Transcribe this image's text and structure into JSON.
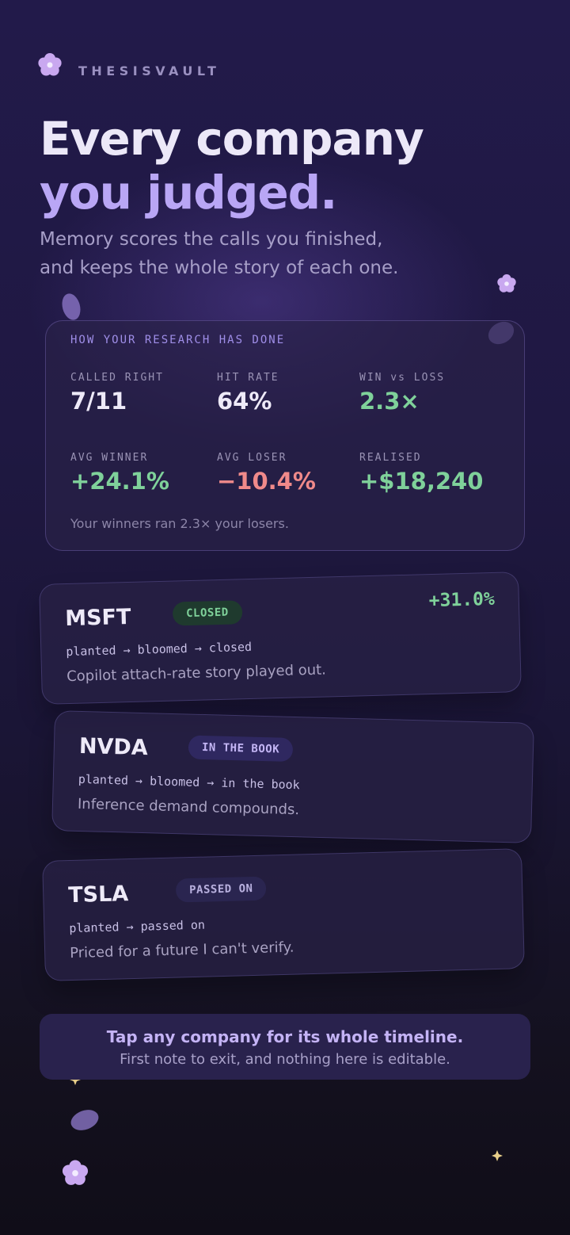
{
  "header": {
    "brand": "THESISVAULT",
    "headline": [
      "Every company",
      "you judged."
    ],
    "subtitle": [
      "Memory scores the calls you finished,",
      "and keeps the whole story of each one."
    ]
  },
  "stats": {
    "heading": "HOW YOUR RESEARCH HAS DONE",
    "items": [
      {
        "label": "CALLED RIGHT",
        "value": "7/11"
      },
      {
        "label": "HIT RATE",
        "value": "64%"
      },
      {
        "label": "WIN vs LOSS",
        "value": "2.3×"
      },
      {
        "label": "AVG WINNER",
        "value": "+24.1%"
      },
      {
        "label": "AVG LOSER",
        "value": "−10.4%"
      },
      {
        "label": "REALISED",
        "value": "+$18,240"
      }
    ],
    "note": "Your winners ran 2.3× your losers."
  },
  "cards": [
    {
      "ticker": "MSFT",
      "status": "CLOSED",
      "stages": "planted → bloomed → closed",
      "note": "Copilot attach-rate story played out.",
      "return": "+31.0%"
    },
    {
      "ticker": "NVDA",
      "status": "IN THE BOOK",
      "stages": "planted → bloomed → in the book",
      "note": "Inference demand compounds."
    },
    {
      "ticker": "TSLA",
      "status": "PASSED ON",
      "stages": "planted → passed on",
      "note": "Priced for a future I can't verify."
    }
  ],
  "footer": {
    "title": "Tap any company for its whole timeline.",
    "text": "First note to exit, and nothing here is editable."
  }
}
